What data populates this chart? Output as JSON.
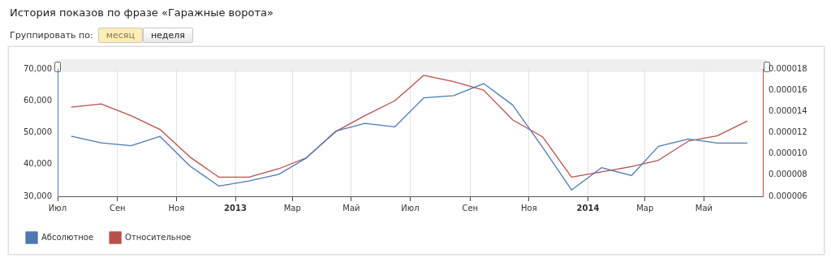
{
  "chart_data": {
    "type": "line",
    "title": "История показов по фразе «Гаражные ворота»",
    "annotations": [
      "Группировать по:",
      "месяц",
      "неделя"
    ],
    "x": [
      "2012-07-15",
      "2012-08-15",
      "2012-09-15",
      "2012-10-15",
      "2012-11-15",
      "2012-12-15",
      "2013-01-15",
      "2013-02-15",
      "2013-03-15",
      "2013-04-15",
      "2013-05-15",
      "2013-06-15",
      "2013-07-15",
      "2013-08-15",
      "2013-09-15",
      "2013-10-15",
      "2013-11-15",
      "2013-12-15",
      "2014-01-15",
      "2014-02-15",
      "2014-03-15",
      "2014-04-15",
      "2014-05-15",
      "2014-06-15"
    ],
    "series": [
      {
        "name": "Абсолютное",
        "color": "#4f78b4",
        "values": [
          48900,
          46800,
          45900,
          48800,
          39500,
          33200,
          34800,
          36900,
          41900,
          50500,
          52900,
          51800,
          60900,
          61600,
          65400,
          58700,
          45400,
          32000,
          39000,
          36500,
          45700,
          48000,
          46700,
          46700
        ]
      },
      {
        "name": "Относительное",
        "color": "#b9504c",
        "axis": "y2",
        "values": [
          1.44e-05,
          1.47e-05,
          1.36e-05,
          1.23e-05,
          9.7e-06,
          7.8e-06,
          7.8e-06,
          8.6e-06,
          9.6e-06,
          1.21e-05,
          1.36e-05,
          1.5e-05,
          1.74e-05,
          1.68e-05,
          1.6e-05,
          1.32e-05,
          1.16e-05,
          7.8e-06,
          8.3e-06,
          8.8e-06,
          9.4e-06,
          1.12e-05,
          1.17e-05,
          1.31e-05
        ]
      }
    ],
    "xlim": [
      "2012-07-01",
      "2014-07-01"
    ],
    "xticks": [
      {
        "value": "2012-07-01",
        "label": "Июл"
      },
      {
        "value": "2012-09-01",
        "label": "Сен"
      },
      {
        "value": "2012-11-01",
        "label": "Ноя"
      },
      {
        "value": "2013-01-01",
        "label": "2013"
      },
      {
        "value": "2013-03-01",
        "label": "Мар"
      },
      {
        "value": "2013-05-01",
        "label": "Май"
      },
      {
        "value": "2013-07-01",
        "label": "Июл"
      },
      {
        "value": "2013-09-01",
        "label": "Сен"
      },
      {
        "value": "2013-11-01",
        "label": "Ноя"
      },
      {
        "value": "2014-01-01",
        "label": "2014"
      },
      {
        "value": "2014-03-01",
        "label": "Мар"
      },
      {
        "value": "2014-05-01",
        "label": "Май"
      }
    ],
    "ylim": [
      30000,
      70000
    ],
    "yticks": [
      {
        "value": 30000,
        "label": "30,000"
      },
      {
        "value": 40000,
        "label": "40,000"
      },
      {
        "value": 50000,
        "label": "50,000"
      },
      {
        "value": 60000,
        "label": "60,000"
      },
      {
        "value": 70000,
        "label": "70,000"
      }
    ],
    "y2lim": [
      6e-06,
      1.8e-05
    ],
    "y2ticks": [
      {
        "value": 6e-06,
        "label": "0.000006"
      },
      {
        "value": 8e-06,
        "label": "0.000008"
      },
      {
        "value": 1e-05,
        "label": "0.000010"
      },
      {
        "value": 1.2e-05,
        "label": "0.000012"
      },
      {
        "value": 1.4e-05,
        "label": "0.000014"
      },
      {
        "value": 1.6e-05,
        "label": "0.000016"
      },
      {
        "value": 1.8e-05,
        "label": "0.000018"
      }
    ],
    "grid": "x",
    "legend": "bottom left",
    "marker": "none",
    "line_style": "solid"
  }
}
